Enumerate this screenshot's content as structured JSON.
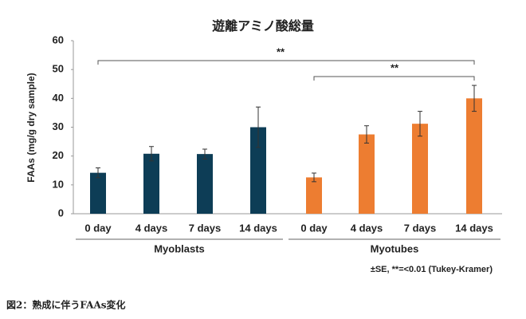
{
  "chart_data": {
    "type": "bar",
    "title": "遊離アミノ酸総量",
    "y_label": "FAAs (mg/g dry sample)",
    "categories": [
      "0 day",
      "4 days",
      "7 days",
      "14 days",
      "0 day",
      "4 days",
      "7 days",
      "14 days"
    ],
    "series": [
      {
        "name": "Myoblasts",
        "color": "#0d3d56",
        "values": [
          14.2,
          20.8,
          20.7,
          30,
          null,
          null,
          null,
          null
        ],
        "errors": [
          1.7,
          2.5,
          1.7,
          7,
          null,
          null,
          null,
          null
        ]
      },
      {
        "name": "Myotubes",
        "color": "#ed7d31",
        "values": [
          null,
          null,
          null,
          null,
          12.6,
          27.5,
          31.2,
          40
        ],
        "errors": [
          null,
          null,
          null,
          null,
          1.5,
          3,
          4.3,
          4.5
        ]
      }
    ],
    "ylim": [
      0,
      60
    ],
    "yticks": [
      0,
      10,
      20,
      30,
      40,
      50,
      60
    ],
    "annotations": [
      "**",
      "**"
    ],
    "note": "±SE, **=<0.01 (Tukey-Kramer)",
    "caption": "図2：熟成に伴うFAAs変化"
  }
}
